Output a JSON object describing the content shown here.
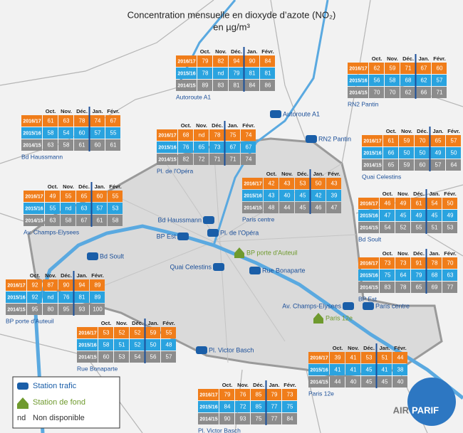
{
  "title": "Concentration mensuelle en dioxyde d’azote (NO₂)",
  "unit": "en µg/m³",
  "columns": [
    "Oct.",
    "Nov.",
    "Déc.",
    "Jan.",
    "Févr."
  ],
  "row_labels": [
    "2016/17",
    "2015/16",
    "2014/15"
  ],
  "stations": [
    {
      "name": "Autoroute A1",
      "rows": [
        [
          79,
          82,
          94,
          90,
          84
        ],
        [
          78,
          "nd",
          79,
          81,
          81
        ],
        [
          89,
          83,
          81,
          84,
          86
        ]
      ]
    },
    {
      "name": "RN2 Pantin",
      "rows": [
        [
          62,
          59,
          71,
          67,
          60
        ],
        [
          56,
          58,
          68,
          62,
          57
        ],
        [
          70,
          70,
          62,
          66,
          71
        ]
      ]
    },
    {
      "name": "Bd Haussmann",
      "rows": [
        [
          61,
          63,
          78,
          74,
          67
        ],
        [
          58,
          54,
          60,
          57,
          55
        ],
        [
          63,
          58,
          61,
          60,
          61
        ]
      ]
    },
    {
      "name": "Pl. de l'Opéra",
      "rows": [
        [
          68,
          "nd",
          78,
          75,
          74
        ],
        [
          76,
          65,
          73,
          67,
          67
        ],
        [
          82,
          72,
          71,
          71,
          74
        ]
      ]
    },
    {
      "name": "Quai Celestins",
      "rows": [
        [
          61,
          59,
          70,
          65,
          57
        ],
        [
          66,
          50,
          50,
          49,
          50
        ],
        [
          65,
          59,
          60,
          57,
          64
        ]
      ]
    },
    {
      "name": "Paris centre",
      "rows": [
        [
          42,
          43,
          53,
          50,
          43
        ],
        [
          43,
          40,
          45,
          42,
          39
        ],
        [
          48,
          44,
          45,
          46,
          47
        ]
      ]
    },
    {
      "name": "Av. Champs-Elysees",
      "rows": [
        [
          49,
          55,
          65,
          60,
          55
        ],
        [
          55,
          "nd",
          63,
          57,
          53
        ],
        [
          63,
          58,
          67,
          61,
          58
        ]
      ]
    },
    {
      "name": "Bd Soult",
      "rows": [
        [
          46,
          49,
          61,
          54,
          50
        ],
        [
          47,
          45,
          49,
          45,
          49
        ],
        [
          54,
          52,
          55,
          51,
          53
        ]
      ]
    },
    {
      "name": "BP Est",
      "rows": [
        [
          73,
          73,
          91,
          78,
          70
        ],
        [
          75,
          64,
          79,
          68,
          63
        ],
        [
          83,
          78,
          65,
          69,
          77
        ]
      ]
    },
    {
      "name": "BP porte d'Auteuil",
      "rows": [
        [
          92,
          87,
          90,
          94,
          89
        ],
        [
          92,
          "nd",
          76,
          81,
          89
        ],
        [
          95,
          80,
          95,
          93,
          100
        ]
      ]
    },
    {
      "name": "Rue Bonaparte",
      "rows": [
        [
          53,
          52,
          52,
          59,
          55
        ],
        [
          58,
          51,
          52,
          50,
          48
        ],
        [
          60,
          53,
          54,
          56,
          57
        ]
      ]
    },
    {
      "name": "Paris 12e",
      "rows": [
        [
          39,
          41,
          53,
          51,
          44
        ],
        [
          41,
          41,
          45,
          41,
          38
        ],
        [
          44,
          40,
          45,
          45,
          40
        ]
      ]
    },
    {
      "name": "Pl. Victor Basch",
      "rows": [
        [
          79,
          76,
          85,
          79,
          73
        ],
        [
          84,
          72,
          85,
          77,
          75
        ],
        [
          90,
          93,
          75,
          77,
          84
        ]
      ]
    }
  ],
  "legend": {
    "traffic": "Station trafic",
    "background": "Station de fond",
    "nd_code": "nd",
    "nd_text": "Non disponible"
  },
  "logo": {
    "left": "AIR",
    "right": "PARIF"
  }
}
